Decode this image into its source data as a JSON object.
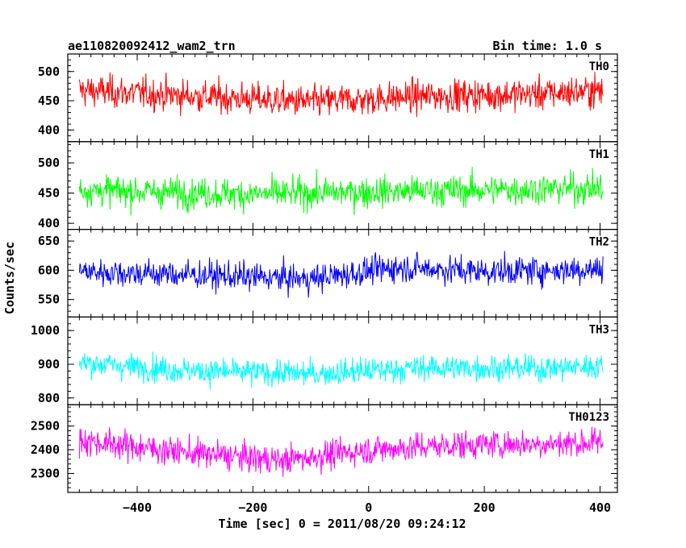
{
  "header": {
    "left": "ae110820092412_wam2_trn",
    "right": "Bin time: 1.0 s"
  },
  "chart_data": {
    "type": "line",
    "title": "ae110820092412_wam2_trn",
    "bin_time_label": "Bin time: 1.0 s",
    "xlabel": "Time [sec] 0 = 2011/08/20 09:24:12",
    "ylabel": "Counts/sec",
    "xlim": [
      -520,
      430
    ],
    "xticks": [
      -400,
      -200,
      0,
      200,
      400
    ],
    "x_start": -500,
    "x_end": 405,
    "x_step": 1,
    "grid": false,
    "panels": [
      {
        "name": "TH0",
        "color": "#ff0000",
        "ylim": [
          380,
          530
        ],
        "yticks": [
          400,
          450,
          500
        ],
        "segments": [
          {
            "x": -500,
            "mean": 468
          },
          {
            "x": -300,
            "mean": 458
          },
          {
            "x": -100,
            "mean": 448
          },
          {
            "x": 100,
            "mean": 458
          },
          {
            "x": 300,
            "mean": 462
          },
          {
            "x": 405,
            "mean": 468
          }
        ],
        "noise_std": 25
      },
      {
        "name": "TH1",
        "color": "#00ff00",
        "ylim": [
          390,
          535
        ],
        "yticks": [
          400,
          450,
          500
        ],
        "segments": [
          {
            "x": -500,
            "mean": 455
          },
          {
            "x": -200,
            "mean": 448
          },
          {
            "x": 0,
            "mean": 452
          },
          {
            "x": 200,
            "mean": 455
          },
          {
            "x": 405,
            "mean": 458
          }
        ],
        "noise_std": 23
      },
      {
        "name": "TH2",
        "color": "#0000ff",
        "ylim": [
          520,
          670
        ],
        "yticks": [
          550,
          600,
          650
        ],
        "segments": [
          {
            "x": -500,
            "mean": 598
          },
          {
            "x": -300,
            "mean": 592
          },
          {
            "x": -100,
            "mean": 585
          },
          {
            "x": 50,
            "mean": 605
          },
          {
            "x": 200,
            "mean": 598
          },
          {
            "x": 405,
            "mean": 602
          }
        ],
        "noise_std": 22
      },
      {
        "name": "TH3",
        "color": "#00ffff",
        "ylim": [
          780,
          1040
        ],
        "yticks": [
          800,
          900,
          1000
        ],
        "segments": [
          {
            "x": -500,
            "mean": 905
          },
          {
            "x": -300,
            "mean": 880
          },
          {
            "x": -100,
            "mean": 872
          },
          {
            "x": 100,
            "mean": 890
          },
          {
            "x": 300,
            "mean": 888
          },
          {
            "x": 405,
            "mean": 895
          }
        ],
        "noise_std": 35
      },
      {
        "name": "TH0123",
        "color": "#ff00ff",
        "ylim": [
          2220,
          2590
        ],
        "yticks": [
          2300,
          2400,
          2500
        ],
        "segments": [
          {
            "x": -500,
            "mean": 2440
          },
          {
            "x": -300,
            "mean": 2385
          },
          {
            "x": -150,
            "mean": 2355
          },
          {
            "x": 0,
            "mean": 2400
          },
          {
            "x": 150,
            "mean": 2420
          },
          {
            "x": 405,
            "mean": 2430
          }
        ],
        "noise_std": 55
      }
    ]
  }
}
